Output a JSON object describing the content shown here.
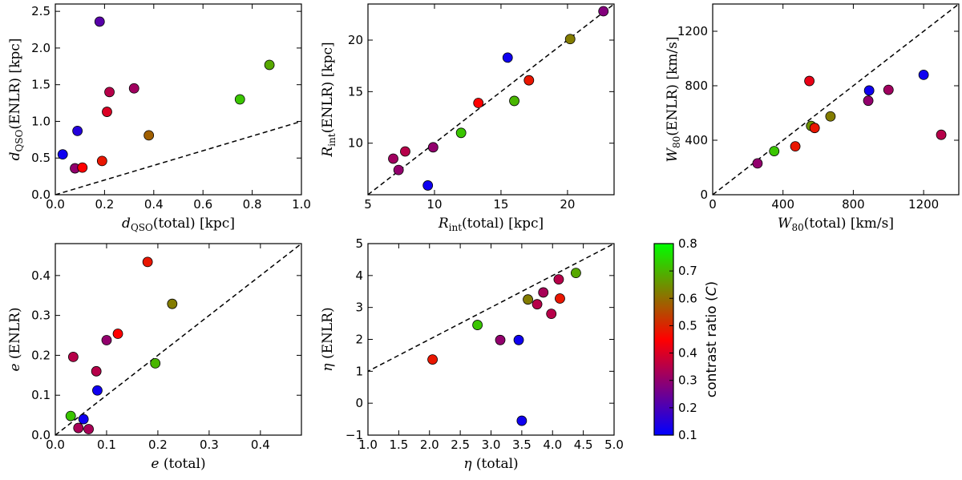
{
  "chart_data": [
    {
      "type": "scatter",
      "xlabel": "d_QSO(total) [kpc]",
      "ylabel": "d_QSO(ENLR) [kpc]",
      "xlim": [
        0.0,
        1.0
      ],
      "ylim": [
        0.0,
        2.6
      ],
      "xticks": [
        "0.0",
        "0.2",
        "0.4",
        "0.6",
        "0.8",
        "1.0"
      ],
      "yticks": [
        "0.0",
        "0.5",
        "1.0",
        "1.5",
        "2.0",
        "2.5"
      ],
      "xtick_values": [
        0.0,
        0.2,
        0.4,
        0.6,
        0.8,
        1.0
      ],
      "ytick_values": [
        0.0,
        0.5,
        1.0,
        1.5,
        2.0,
        2.5
      ],
      "reference_line": "one-to-one (dashed)",
      "points": [
        {
          "x": 0.03,
          "y": 0.55,
          "c": 0.12
        },
        {
          "x": 0.08,
          "y": 0.36,
          "c": 0.3
        },
        {
          "x": 0.09,
          "y": 0.87,
          "c": 0.15
        },
        {
          "x": 0.11,
          "y": 0.37,
          "c": 0.45
        },
        {
          "x": 0.18,
          "y": 2.36,
          "c": 0.22
        },
        {
          "x": 0.19,
          "y": 0.46,
          "c": 0.48
        },
        {
          "x": 0.21,
          "y": 1.13,
          "c": 0.4
        },
        {
          "x": 0.22,
          "y": 1.4,
          "c": 0.35
        },
        {
          "x": 0.32,
          "y": 1.45,
          "c": 0.32
        },
        {
          "x": 0.38,
          "y": 0.81,
          "c": 0.58
        },
        {
          "x": 0.75,
          "y": 1.3,
          "c": 0.72
        },
        {
          "x": 0.87,
          "y": 1.77,
          "c": 0.68
        }
      ]
    },
    {
      "type": "scatter",
      "xlabel": "R_int(total) [kpc]",
      "ylabel": "R_int(ENLR) [kpc]",
      "xlim": [
        5,
        23.5
      ],
      "ylim": [
        5,
        23.5
      ],
      "xticks": [
        "5",
        "10",
        "15",
        "20"
      ],
      "yticks": [
        "10",
        "15",
        "20"
      ],
      "xtick_values": [
        5,
        10,
        15,
        20
      ],
      "ytick_values": [
        10,
        15,
        20
      ],
      "reference_line": "one-to-one (dashed)",
      "points": [
        {
          "x": 6.9,
          "y": 8.5,
          "c": 0.32
        },
        {
          "x": 7.3,
          "y": 7.4,
          "c": 0.3
        },
        {
          "x": 7.8,
          "y": 9.2,
          "c": 0.35
        },
        {
          "x": 9.5,
          "y": 5.9,
          "c": 0.12
        },
        {
          "x": 9.9,
          "y": 9.6,
          "c": 0.3
        },
        {
          "x": 12.0,
          "y": 11.0,
          "c": 0.72
        },
        {
          "x": 13.3,
          "y": 13.9,
          "c": 0.45
        },
        {
          "x": 15.5,
          "y": 18.3,
          "c": 0.12
        },
        {
          "x": 16.0,
          "y": 14.1,
          "c": 0.7
        },
        {
          "x": 17.1,
          "y": 16.1,
          "c": 0.48
        },
        {
          "x": 20.2,
          "y": 20.1,
          "c": 0.62
        },
        {
          "x": 22.7,
          "y": 22.8,
          "c": 0.28
        }
      ]
    },
    {
      "type": "scatter",
      "xlabel": "W_80(total) [km/s]",
      "ylabel": "W_80(ENLR) [km/s]",
      "xlim": [
        0,
        1400
      ],
      "ylim": [
        0,
        1400
      ],
      "xticks": [
        "0",
        "400",
        "800",
        "1200"
      ],
      "yticks": [
        "0",
        "400",
        "800",
        "1200"
      ],
      "xtick_values": [
        0,
        400,
        800,
        1200
      ],
      "ytick_values": [
        0,
        400,
        800,
        1200
      ],
      "reference_line": "one-to-one (dashed)",
      "points": [
        {
          "x": 255,
          "y": 230,
          "c": 0.3
        },
        {
          "x": 350,
          "y": 320,
          "c": 0.72
        },
        {
          "x": 470,
          "y": 355,
          "c": 0.48
        },
        {
          "x": 550,
          "y": 835,
          "c": 0.42
        },
        {
          "x": 560,
          "y": 505,
          "c": 0.65
        },
        {
          "x": 580,
          "y": 490,
          "c": 0.48
        },
        {
          "x": 670,
          "y": 575,
          "c": 0.62
        },
        {
          "x": 885,
          "y": 690,
          "c": 0.3
        },
        {
          "x": 890,
          "y": 765,
          "c": 0.12
        },
        {
          "x": 1000,
          "y": 770,
          "c": 0.32
        },
        {
          "x": 1200,
          "y": 880,
          "c": 0.12
        },
        {
          "x": 1300,
          "y": 440,
          "c": 0.35
        }
      ]
    },
    {
      "type": "scatter",
      "xlabel": "e (total)",
      "ylabel": "e (ENLR)",
      "xlim": [
        0.0,
        0.48
      ],
      "ylim": [
        0.0,
        0.48
      ],
      "xticks": [
        "0.0",
        "0.1",
        "0.2",
        "0.3",
        "0.4"
      ],
      "yticks": [
        "0.0",
        "0.1",
        "0.2",
        "0.3",
        "0.4"
      ],
      "xtick_values": [
        0.0,
        0.1,
        0.2,
        0.3,
        0.4
      ],
      "ytick_values": [
        0.0,
        0.1,
        0.2,
        0.3,
        0.4
      ],
      "reference_line": "one-to-one (dashed)",
      "points": [
        {
          "x": 0.03,
          "y": 0.048,
          "c": 0.72
        },
        {
          "x": 0.035,
          "y": 0.196,
          "c": 0.35
        },
        {
          "x": 0.045,
          "y": 0.018,
          "c": 0.33
        },
        {
          "x": 0.055,
          "y": 0.04,
          "c": 0.12
        },
        {
          "x": 0.065,
          "y": 0.015,
          "c": 0.33
        },
        {
          "x": 0.08,
          "y": 0.16,
          "c": 0.35
        },
        {
          "x": 0.082,
          "y": 0.112,
          "c": 0.12
        },
        {
          "x": 0.1,
          "y": 0.238,
          "c": 0.3
        },
        {
          "x": 0.122,
          "y": 0.254,
          "c": 0.45
        },
        {
          "x": 0.18,
          "y": 0.434,
          "c": 0.48
        },
        {
          "x": 0.195,
          "y": 0.18,
          "c": 0.7
        },
        {
          "x": 0.228,
          "y": 0.329,
          "c": 0.62
        }
      ]
    },
    {
      "type": "scatter",
      "xlabel": "η (total)",
      "ylabel": "η (ENLR)",
      "xlim": [
        1.0,
        5.0
      ],
      "ylim": [
        -1,
        5
      ],
      "xticks": [
        "1.0",
        "1.5",
        "2.0",
        "2.5",
        "3.0",
        "3.5",
        "4.0",
        "4.5",
        "5.0"
      ],
      "yticks": [
        "−1",
        "0",
        "1",
        "2",
        "3",
        "4",
        "5"
      ],
      "xtick_values": [
        1.0,
        1.5,
        2.0,
        2.5,
        3.0,
        3.5,
        4.0,
        4.5,
        5.0
      ],
      "ytick_values": [
        -1,
        0,
        1,
        2,
        3,
        4,
        5
      ],
      "reference_line": "y = x (dashed)",
      "points": [
        {
          "x": 2.05,
          "y": 1.37,
          "c": 0.48
        },
        {
          "x": 2.78,
          "y": 2.45,
          "c": 0.72
        },
        {
          "x": 3.15,
          "y": 1.98,
          "c": 0.3
        },
        {
          "x": 3.45,
          "y": 1.98,
          "c": 0.12
        },
        {
          "x": 3.5,
          "y": -0.55,
          "c": 0.12
        },
        {
          "x": 3.6,
          "y": 3.25,
          "c": 0.62
        },
        {
          "x": 3.75,
          "y": 3.1,
          "c": 0.35
        },
        {
          "x": 3.85,
          "y": 3.47,
          "c": 0.33
        },
        {
          "x": 3.98,
          "y": 2.8,
          "c": 0.35
        },
        {
          "x": 4.1,
          "y": 3.88,
          "c": 0.35
        },
        {
          "x": 4.12,
          "y": 3.28,
          "c": 0.48
        },
        {
          "x": 4.38,
          "y": 4.08,
          "c": 0.68
        }
      ]
    }
  ],
  "colorbar": {
    "label": "contrast ratio (C)",
    "min": 0.1,
    "max": 0.8,
    "ticks": [
      "0.1",
      "0.2",
      "0.3",
      "0.4",
      "0.5",
      "0.6",
      "0.7",
      "0.8"
    ],
    "tick_values": [
      0.1,
      0.2,
      0.3,
      0.4,
      0.5,
      0.6,
      0.7,
      0.8
    ],
    "colors": [
      "#0000ff",
      "#ff0000",
      "#00ff00"
    ]
  }
}
